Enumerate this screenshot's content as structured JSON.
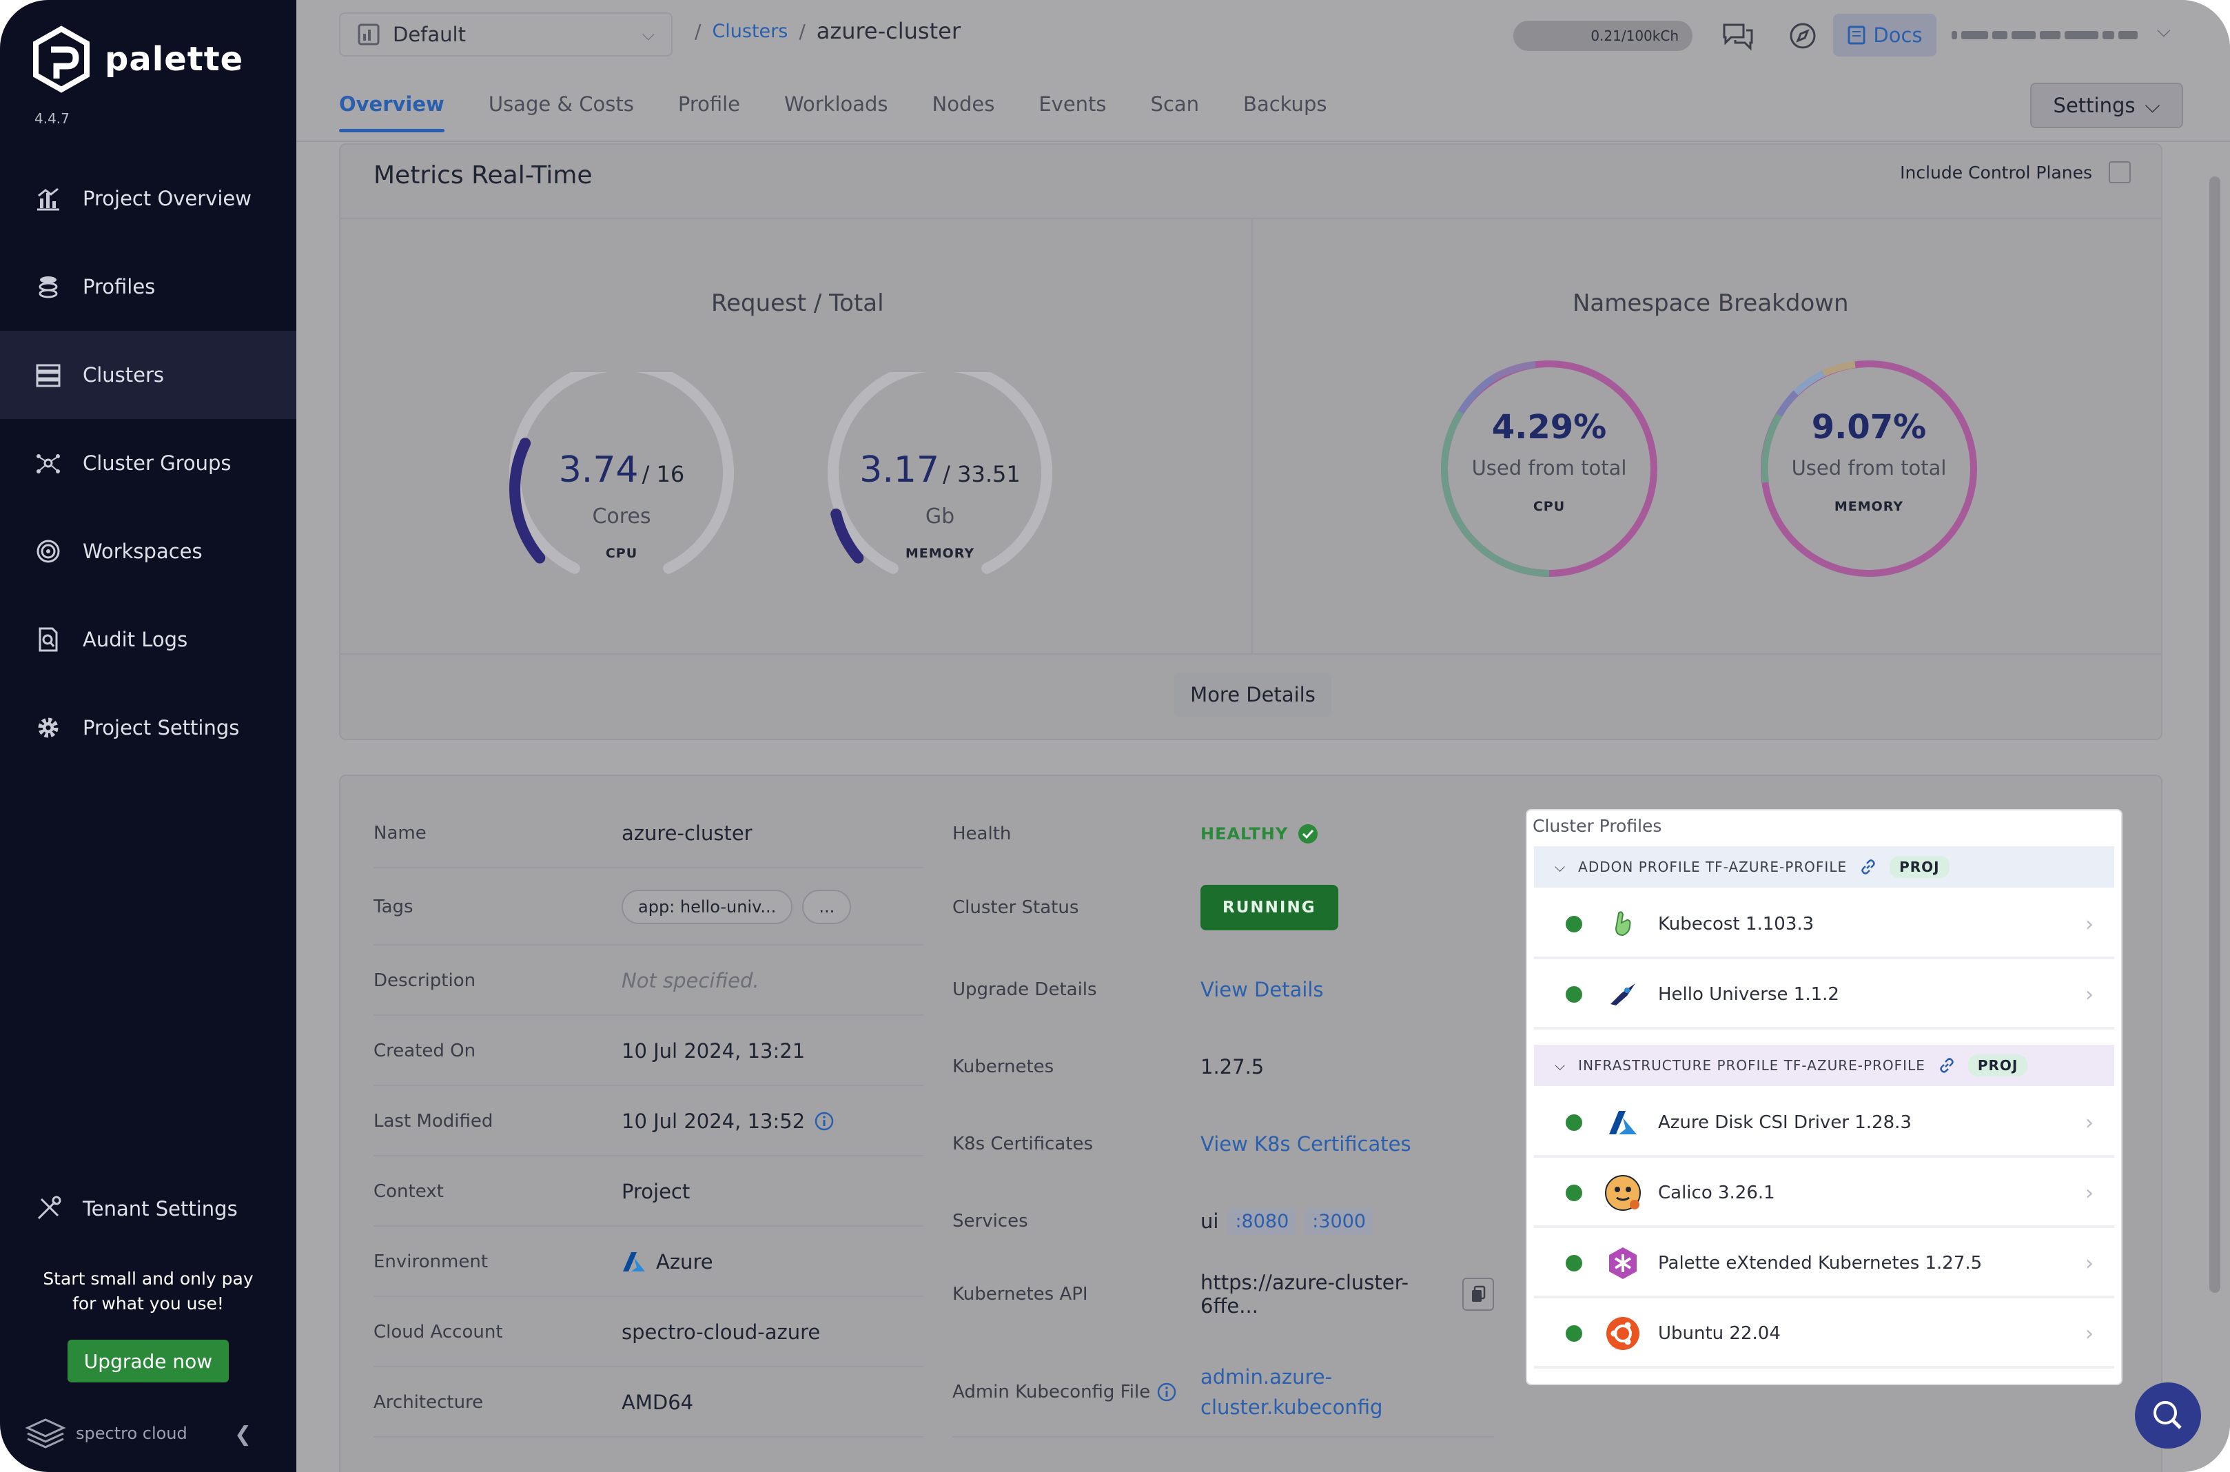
{
  "sidebar": {
    "brand": "palette",
    "version": "4.4.7",
    "items": [
      {
        "label": "Project Overview",
        "icon": "chart-icon"
      },
      {
        "label": "Profiles",
        "icon": "stack-icon"
      },
      {
        "label": "Clusters",
        "icon": "clusters-icon",
        "active": true
      },
      {
        "label": "Cluster Groups",
        "icon": "network-icon"
      },
      {
        "label": "Workspaces",
        "icon": "target-icon"
      },
      {
        "label": "Audit Logs",
        "icon": "file-search-icon"
      },
      {
        "label": "Project Settings",
        "icon": "gear-icon"
      }
    ],
    "tenant_settings": "Tenant Settings",
    "promo_line1": "Start small and only pay",
    "promo_line2": "for what you use!",
    "upgrade_label": "Upgrade now",
    "footer_brand": "spectro cloud"
  },
  "header": {
    "project": "Default",
    "breadcrumb_link": "Clusters",
    "breadcrumb_current": "azure-cluster",
    "usage": "0.21/100kCh",
    "docs_label": "Docs"
  },
  "tabs": [
    "Overview",
    "Usage & Costs",
    "Profile",
    "Workloads",
    "Nodes",
    "Events",
    "Scan",
    "Backups"
  ],
  "settings_label": "Settings",
  "metrics": {
    "title": "Metrics Real-Time",
    "include_control_planes": "Include Control Planes",
    "request_total_title": "Request / Total",
    "namespace_title": "Namespace Breakdown",
    "cpu": {
      "value": "3.74",
      "total": "/ 16",
      "unit": "Cores",
      "kind": "CPU",
      "fraction": 0.234
    },
    "memory": {
      "value": "3.17",
      "total": "/ 33.51",
      "unit": "Gb",
      "kind": "MEMORY",
      "fraction": 0.095
    },
    "ns_cpu": {
      "pct": "4.29%",
      "used": "Used from total",
      "kind": "CPU"
    },
    "ns_memory": {
      "pct": "9.07%",
      "used": "Used from total",
      "kind": "MEMORY"
    },
    "more_details": "More Details"
  },
  "details": {
    "left": [
      {
        "label": "Name",
        "value": "azure-cluster"
      },
      {
        "label": "Tags",
        "tag": "app: hello-univ...",
        "more": "..."
      },
      {
        "label": "Description",
        "value": "Not specified."
      },
      {
        "label": "Created On",
        "value": "10 Jul 2024, 13:21"
      },
      {
        "label": "Last Modified",
        "value": "10 Jul 2024, 13:52"
      },
      {
        "label": "Context",
        "value": "Project"
      },
      {
        "label": "Environment",
        "value": "Azure"
      },
      {
        "label": "Cloud Account",
        "value": "spectro-cloud-azure"
      },
      {
        "label": "Architecture",
        "value": "AMD64"
      }
    ],
    "right": [
      {
        "label": "Health",
        "value": "HEALTHY"
      },
      {
        "label": "Cluster Status",
        "value": "RUNNING"
      },
      {
        "label": "Upgrade Details",
        "value": "View Details"
      },
      {
        "label": "Kubernetes",
        "value": "1.27.5"
      },
      {
        "label": "K8s Certificates",
        "value": "View K8s Certificates"
      },
      {
        "label": "Services",
        "value": "ui",
        "port1": ":8080",
        "port2": ":3000"
      },
      {
        "label": "Kubernetes API",
        "value": "https://azure-cluster-6ffe..."
      },
      {
        "label": "Admin Kubeconfig File",
        "value1": "admin.azure-",
        "value2": "cluster.kubeconfig"
      }
    ]
  },
  "profiles": {
    "title": "Cluster Profiles",
    "addon_label": "ADDON PROFILE TF-AZURE-PROFILE",
    "infra_label": "INFRASTRUCTURE PROFILE TF-AZURE-PROFILE",
    "badge": "PROJ",
    "addon_items": [
      {
        "name": "Kubecost 1.103.3",
        "icon": "kubecost-icon"
      },
      {
        "name": "Hello Universe 1.1.2",
        "icon": "hello-universe-icon"
      }
    ],
    "infra_items": [
      {
        "name": "Azure Disk CSI Driver 1.28.3",
        "icon": "azure-icon"
      },
      {
        "name": "Calico 3.26.1",
        "icon": "calico-icon"
      },
      {
        "name": "Palette eXtended Kubernetes 1.27.5",
        "icon": "pxk-icon"
      },
      {
        "name": "Ubuntu 22.04",
        "icon": "ubuntu-icon"
      }
    ]
  },
  "colors": {
    "sidebar": "#0c0e21",
    "accent": "#2a5fae",
    "success": "#2a8a3a",
    "gauge": "#2e2a77"
  }
}
